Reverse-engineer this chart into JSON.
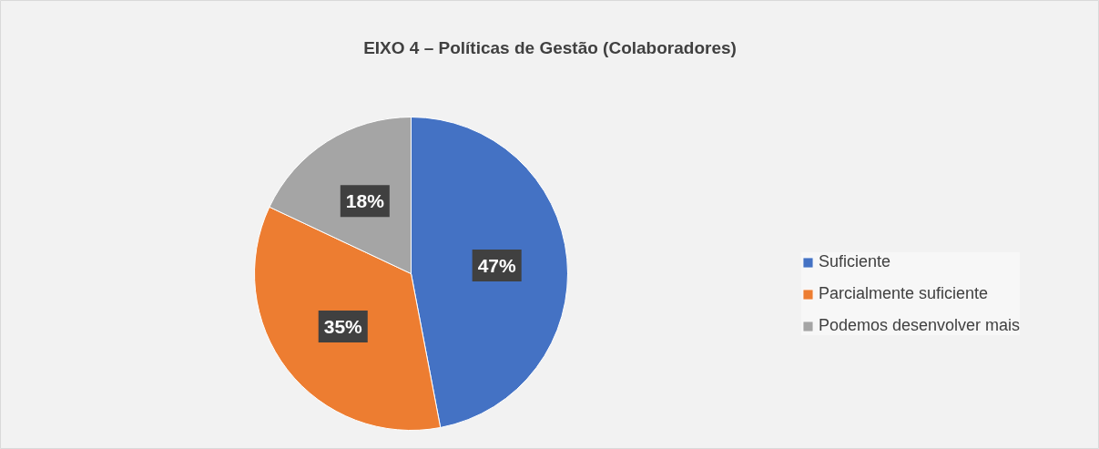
{
  "chart_data": {
    "type": "pie",
    "title": "EIXO 4 – Políticas de Gestão (Colaboradores)",
    "categories": [
      "Suficiente",
      "Parcialmente suficiente",
      "Podemos desenvolver mais"
    ],
    "values": [
      47,
      35,
      18
    ],
    "colors": [
      "#4472c4",
      "#ed7d31",
      "#a5a5a5"
    ],
    "value_labels": [
      "47%",
      "35%",
      "18%"
    ],
    "legend": "right"
  }
}
